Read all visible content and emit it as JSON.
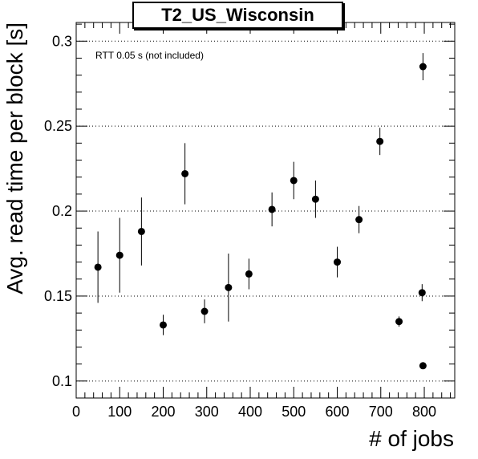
{
  "chart_data": {
    "type": "scatter",
    "title": "T2_US_Wisconsin",
    "xlabel": "# of jobs",
    "ylabel": "Avg. read time per block [s]",
    "annotation": "RTT 0.05 s (not included)",
    "xlim": [
      0,
      870
    ],
    "ylim": [
      0.09,
      0.311
    ],
    "xticks": [
      0,
      100,
      200,
      300,
      400,
      500,
      600,
      700,
      800
    ],
    "yticks": [
      0.1,
      0.15,
      0.2,
      0.25,
      0.3
    ],
    "ytick_labels": [
      "0.1",
      "0.15",
      "0.2",
      "0.25",
      "0.3"
    ],
    "grid": "horizontal-dotted",
    "points": [
      {
        "x": 50,
        "y": 0.167,
        "err": 0.021
      },
      {
        "x": 100,
        "y": 0.174,
        "err": 0.022
      },
      {
        "x": 150,
        "y": 0.188,
        "err": 0.02
      },
      {
        "x": 200,
        "y": 0.133,
        "err": 0.006
      },
      {
        "x": 250,
        "y": 0.222,
        "err": 0.018
      },
      {
        "x": 295,
        "y": 0.141,
        "err": 0.007
      },
      {
        "x": 350,
        "y": 0.155,
        "err": 0.02
      },
      {
        "x": 397,
        "y": 0.163,
        "err": 0.009
      },
      {
        "x": 450,
        "y": 0.201,
        "err": 0.01
      },
      {
        "x": 500,
        "y": 0.218,
        "err": 0.011
      },
      {
        "x": 550,
        "y": 0.207,
        "err": 0.011
      },
      {
        "x": 600,
        "y": 0.17,
        "err": 0.009
      },
      {
        "x": 650,
        "y": 0.195,
        "err": 0.008
      },
      {
        "x": 698,
        "y": 0.241,
        "err": 0.008
      },
      {
        "x": 742,
        "y": 0.135,
        "err": 0.003
      },
      {
        "x": 795,
        "y": 0.152,
        "err": 0.005
      },
      {
        "x": 797,
        "y": 0.285,
        "err": 0.008
      },
      {
        "x": 797,
        "y": 0.109,
        "err": 0.001
      }
    ]
  }
}
